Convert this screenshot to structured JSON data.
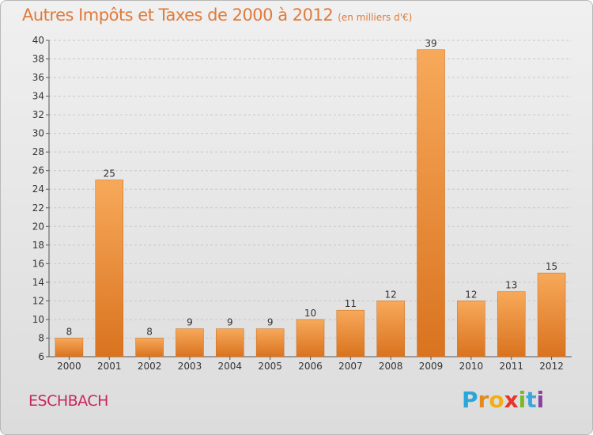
{
  "header": {
    "title": "Autres Impôts et Taxes de 2000 à 2012",
    "subtitle": "(en milliers d'€)"
  },
  "footer": {
    "commune": "ESCHBACH",
    "logo_letters": [
      "P",
      "r",
      "o",
      "x",
      "i",
      "t",
      "i"
    ],
    "logo_colors": [
      "#2aa7d9",
      "#e38a1c",
      "#f0b015",
      "#e8342a",
      "#7ab929",
      "#3fa6dc",
      "#8b3f9e"
    ]
  },
  "colors": {
    "bar_top": "#f7a95a",
    "bar_bottom": "#d9731f",
    "bar_edge": "#c86a1c",
    "grid": "#c8c8c8",
    "axis_text": "#333333",
    "title": "#e07a3a"
  },
  "chart_data": {
    "type": "bar",
    "categories": [
      "2000",
      "2001",
      "2002",
      "2003",
      "2004",
      "2005",
      "2006",
      "2007",
      "2008",
      "2009",
      "2010",
      "2011",
      "2012"
    ],
    "values": [
      8,
      25,
      8,
      9,
      9,
      9,
      10,
      11,
      12,
      39,
      12,
      13,
      15
    ],
    "data_labels": [
      "8",
      "25",
      "8",
      "9",
      "9",
      "9",
      "10",
      "11",
      "12",
      "39",
      "12",
      "13",
      "15"
    ],
    "title": "Autres Impôts et Taxes de 2000 à 2012",
    "subtitle": "(en milliers d'€)",
    "xlabel": "",
    "ylabel": "",
    "ylim": [
      6,
      40
    ],
    "yticks": [
      6,
      8,
      10,
      12,
      14,
      16,
      18,
      20,
      22,
      24,
      26,
      28,
      30,
      32,
      34,
      36,
      38,
      40
    ],
    "grid": "horizontal dashed"
  }
}
